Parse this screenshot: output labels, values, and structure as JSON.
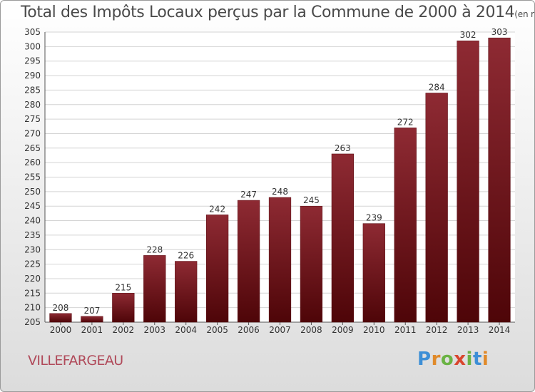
{
  "chart_data": {
    "type": "bar",
    "title": "Total des Impôts Locaux perçus par la Commune de 2000 à 2014",
    "subtitle": "(en milliers d'€)",
    "categories": [
      "2000",
      "2001",
      "2002",
      "2003",
      "2004",
      "2005",
      "2006",
      "2007",
      "2008",
      "2009",
      "2010",
      "2011",
      "2012",
      "2013",
      "2014"
    ],
    "values": [
      208,
      207,
      215,
      228,
      226,
      242,
      247,
      248,
      245,
      263,
      239,
      272,
      284,
      302,
      303
    ],
    "ylim": [
      205,
      305
    ],
    "ytick_step": 5,
    "xlabel": "",
    "ylabel": "",
    "grid": true,
    "bar_color": "#7a1a22"
  },
  "footer": {
    "commune": "VILLEFARGEAU",
    "logo": {
      "p": "P",
      "r": "r",
      "o": "o",
      "x": "x",
      "i": "i",
      "t": "t",
      "i2": "i"
    }
  }
}
